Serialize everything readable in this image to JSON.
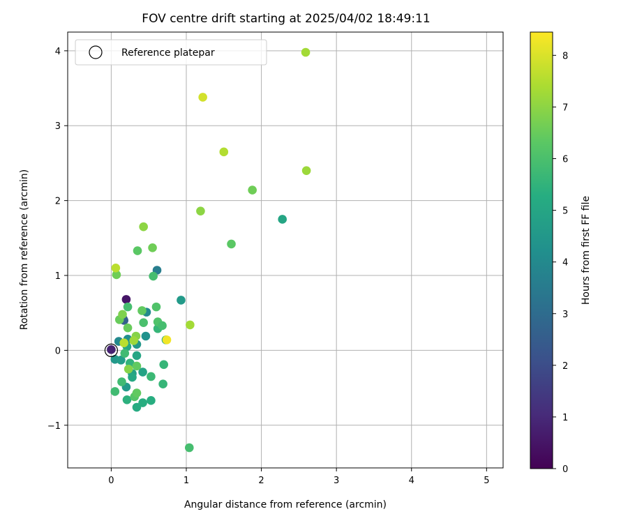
{
  "chart_data": {
    "type": "scatter",
    "title": "FOV centre drift starting at 2025/04/02 18:49:11",
    "xlabel": "Angular distance from reference (arcmin)",
    "ylabel": "Rotation from reference (arcmin)",
    "xlim": [
      -0.58,
      5.22
    ],
    "ylim": [
      -1.57,
      4.25
    ],
    "xticks": [
      0,
      1,
      2,
      3,
      4,
      5
    ],
    "yticks": [
      -1,
      0,
      1,
      2,
      3,
      4
    ],
    "xtick_labels": [
      "0",
      "1",
      "2",
      "3",
      "4",
      "5"
    ],
    "ytick_labels": [
      "−1",
      "0",
      "1",
      "2",
      "3",
      "4"
    ],
    "grid": true,
    "legend": {
      "placement": "top-left",
      "entries": [
        "Reference platepar"
      ]
    },
    "reference_point": {
      "x": 0,
      "y": 0,
      "label": "Reference platepar"
    },
    "colorbar": {
      "label": "Hours from first FF file",
      "colormap": "viridis",
      "min": 0,
      "max": 8.45,
      "ticks": [
        0,
        1,
        2,
        3,
        4,
        5,
        6,
        7,
        8
      ],
      "tick_labels": [
        "0",
        "1",
        "2",
        "3",
        "4",
        "5",
        "6",
        "7",
        "8"
      ]
    },
    "points": [
      {
        "x": 0.0,
        "y": 0.01,
        "c": 0.8
      },
      {
        "x": 0.2,
        "y": 0.68,
        "c": 0.5
      },
      {
        "x": 0.16,
        "y": 0.42,
        "c": 2.1
      },
      {
        "x": 0.17,
        "y": 0.4,
        "c": 2.6
      },
      {
        "x": 0.61,
        "y": 1.07,
        "c": 3.6
      },
      {
        "x": 0.93,
        "y": 0.67,
        "c": 4.6
      },
      {
        "x": 0.47,
        "y": 0.51,
        "c": 4.0
      },
      {
        "x": 0.46,
        "y": 0.19,
        "c": 4.3
      },
      {
        "x": 0.1,
        "y": 0.12,
        "c": 4.0
      },
      {
        "x": 0.22,
        "y": 0.15,
        "c": 4.2
      },
      {
        "x": 0.34,
        "y": 0.08,
        "c": 4.5
      },
      {
        "x": 0.2,
        "y": -0.49,
        "c": 4.6
      },
      {
        "x": 0.05,
        "y": -0.12,
        "c": 4.5
      },
      {
        "x": 0.13,
        "y": -0.13,
        "c": 4.7
      },
      {
        "x": 0.28,
        "y": -0.31,
        "c": 4.8
      },
      {
        "x": 0.42,
        "y": -0.29,
        "c": 4.9
      },
      {
        "x": 0.34,
        "y": -0.07,
        "c": 5.0
      },
      {
        "x": 0.21,
        "y": 0.05,
        "c": 5.1
      },
      {
        "x": 0.28,
        "y": -0.36,
        "c": 5.1
      },
      {
        "x": 0.34,
        "y": -0.76,
        "c": 5.2
      },
      {
        "x": 0.42,
        "y": -0.7,
        "c": 5.3
      },
      {
        "x": 0.53,
        "y": -0.67,
        "c": 5.3
      },
      {
        "x": 0.21,
        "y": -0.66,
        "c": 5.4
      },
      {
        "x": 2.28,
        "y": 1.75,
        "c": 5.0
      },
      {
        "x": 0.62,
        "y": 0.29,
        "c": 5.6
      },
      {
        "x": 0.73,
        "y": 0.14,
        "c": 5.3
      },
      {
        "x": 0.7,
        "y": -0.19,
        "c": 5.6
      },
      {
        "x": 0.69,
        "y": -0.45,
        "c": 5.6
      },
      {
        "x": 0.53,
        "y": -0.35,
        "c": 5.7
      },
      {
        "x": 0.25,
        "y": -0.17,
        "c": 5.5
      },
      {
        "x": 0.18,
        "y": -0.04,
        "c": 5.8
      },
      {
        "x": 0.14,
        "y": -0.42,
        "c": 5.8
      },
      {
        "x": 0.05,
        "y": -0.55,
        "c": 5.8
      },
      {
        "x": 0.31,
        "y": -0.62,
        "c": 6.2
      },
      {
        "x": 0.34,
        "y": -0.57,
        "c": 6.4
      },
      {
        "x": 1.04,
        "y": -1.3,
        "c": 5.9
      },
      {
        "x": 0.43,
        "y": 0.37,
        "c": 6.0
      },
      {
        "x": 0.22,
        "y": 0.58,
        "c": 5.9
      },
      {
        "x": 0.41,
        "y": 0.53,
        "c": 6.4
      },
      {
        "x": 0.6,
        "y": 0.58,
        "c": 6.1
      },
      {
        "x": 0.62,
        "y": 0.38,
        "c": 6.1
      },
      {
        "x": 0.68,
        "y": 0.33,
        "c": 5.9
      },
      {
        "x": 0.56,
        "y": 0.99,
        "c": 5.9
      },
      {
        "x": 1.6,
        "y": 1.42,
        "c": 6.3
      },
      {
        "x": 1.88,
        "y": 2.14,
        "c": 6.6
      },
      {
        "x": 1.19,
        "y": 1.86,
        "c": 7.0
      },
      {
        "x": 0.35,
        "y": 1.33,
        "c": 6.3
      },
      {
        "x": 0.55,
        "y": 1.37,
        "c": 6.6
      },
      {
        "x": 0.43,
        "y": 1.65,
        "c": 7.0
      },
      {
        "x": 0.07,
        "y": 1.01,
        "c": 6.6
      },
      {
        "x": 0.06,
        "y": 1.1,
        "c": 7.6
      },
      {
        "x": 0.11,
        "y": 0.41,
        "c": 6.5
      },
      {
        "x": 0.15,
        "y": 0.48,
        "c": 6.8
      },
      {
        "x": 0.22,
        "y": 0.3,
        "c": 6.5
      },
      {
        "x": 0.33,
        "y": 0.19,
        "c": 6.9
      },
      {
        "x": 0.3,
        "y": 0.13,
        "c": 7.2
      },
      {
        "x": 0.17,
        "y": 0.1,
        "c": 7.6
      },
      {
        "x": 0.23,
        "y": -0.25,
        "c": 6.9
      },
      {
        "x": 0.34,
        "y": -0.21,
        "c": 6.4
      },
      {
        "x": 1.05,
        "y": 0.34,
        "c": 7.3
      },
      {
        "x": 0.74,
        "y": 0.14,
        "c": 8.3
      },
      {
        "x": 1.22,
        "y": 3.38,
        "c": 7.9
      },
      {
        "x": 1.5,
        "y": 2.65,
        "c": 7.5
      },
      {
        "x": 2.6,
        "y": 2.4,
        "c": 7.2
      },
      {
        "x": 2.59,
        "y": 3.98,
        "c": 7.3
      }
    ]
  }
}
